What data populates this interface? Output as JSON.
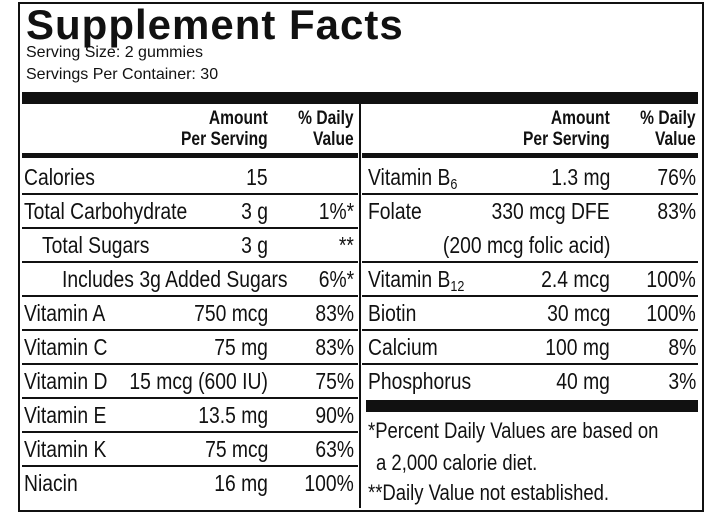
{
  "header": {
    "title": "Supplement Facts",
    "serving_size": "Serving Size:  2 gummies",
    "servings_per_container": "Servings Per Container: 30"
  },
  "columns": {
    "amount": [
      "Amount",
      "Per Serving"
    ],
    "daily_value": [
      "% Daily",
      "Value"
    ]
  },
  "left_rows": [
    {
      "name": "Calories",
      "amount": "15"
    },
    {
      "name": "Total Carbohydrate",
      "amount": "3 g",
      "daily_value": "1%*"
    },
    {
      "name": "Total Sugars",
      "amount": "3 g",
      "daily_value": "**"
    },
    {
      "name": "Includes 3g Added Sugars",
      "daily_value": "6%*"
    },
    {
      "name": "Vitamin A",
      "amount": "750 mcg",
      "daily_value": "83%"
    },
    {
      "name": "Vitamin C",
      "amount": "75 mg",
      "daily_value": "83%"
    },
    {
      "name": "Vitamin D",
      "amount": "15 mcg (600 IU)",
      "daily_value": "75%"
    },
    {
      "name": "Vitamin E",
      "amount": "13.5 mg",
      "daily_value": "90%"
    },
    {
      "name": "Vitamin K",
      "amount": "75 mcg",
      "daily_value": "63%"
    },
    {
      "name": "Niacin",
      "amount": "16 mg",
      "daily_value": "100%"
    }
  ],
  "right_rows": [
    {
      "name": "Vitamin B",
      "sub": "6",
      "amount": "1.3 mg",
      "daily_value": "76%"
    },
    {
      "name": "Folate",
      "amount": "330 mcg DFE",
      "amount_note": "(200 mcg folic acid)",
      "daily_value": "83%"
    },
    {
      "name": "Vitamin B",
      "sub": "12",
      "amount": "2.4 mcg",
      "daily_value": "100%"
    },
    {
      "name": "Biotin",
      "amount": "30 mcg",
      "daily_value": "100%"
    },
    {
      "name": "Calcium",
      "amount": "100 mg",
      "daily_value": "8%"
    },
    {
      "name": "Phosphorus",
      "amount": "40 mg",
      "daily_value": "3%"
    }
  ],
  "footnotes": [
    "*Percent Daily Values are based on",
    "a 2,000 calorie diet.",
    "**Daily Value not established."
  ]
}
